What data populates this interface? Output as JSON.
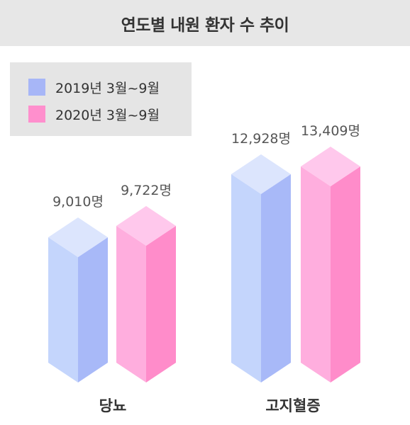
{
  "chart_data": {
    "type": "bar",
    "title": "연도별 내원 환자 수 추이",
    "categories": [
      "당뇨",
      "고지혈증"
    ],
    "series": [
      {
        "name": "2019년 3월~9월",
        "values": [
          9010,
          12928
        ],
        "labels": [
          "9,010명",
          "12,928명"
        ]
      },
      {
        "name": "2020년 3월~9월",
        "values": [
          9722,
          13409
        ],
        "labels": [
          "9,722명",
          "13,409명"
        ]
      }
    ],
    "legend_position": "top-left"
  },
  "colors": {
    "series_swatch": [
      "#a7b6f7",
      "#ff8fcd"
    ],
    "bar_front": [
      "#c4d5fc",
      "#ffaede"
    ],
    "bar_side": [
      "#a8b9f8",
      "#ff8cca"
    ],
    "bar_top": [
      "#dce5fd",
      "#ffc8ec"
    ]
  }
}
